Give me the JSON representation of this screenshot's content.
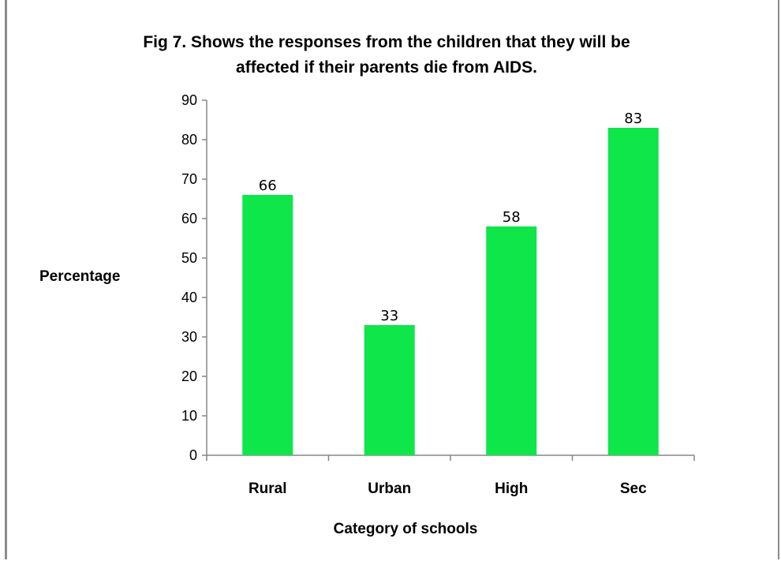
{
  "chart_data": {
    "type": "bar",
    "title_lines": [
      "Fig 7. Shows the responses from the children that they will be",
      "affected if their parents die from AIDS."
    ],
    "categories": [
      "Rural",
      "Urban",
      "High",
      "Sec"
    ],
    "values": [
      66,
      33,
      58,
      83
    ],
    "data_labels": [
      "66",
      "33",
      "58",
      "83"
    ],
    "xlabel": "Category of schools",
    "ylabel": "Percentage",
    "ylim": [
      0,
      90
    ],
    "yticks": [
      "0",
      "10",
      "20",
      "30",
      "40",
      "50",
      "60",
      "70",
      "80",
      "90"
    ],
    "grid": false,
    "bar_color": "#0ee64a"
  }
}
